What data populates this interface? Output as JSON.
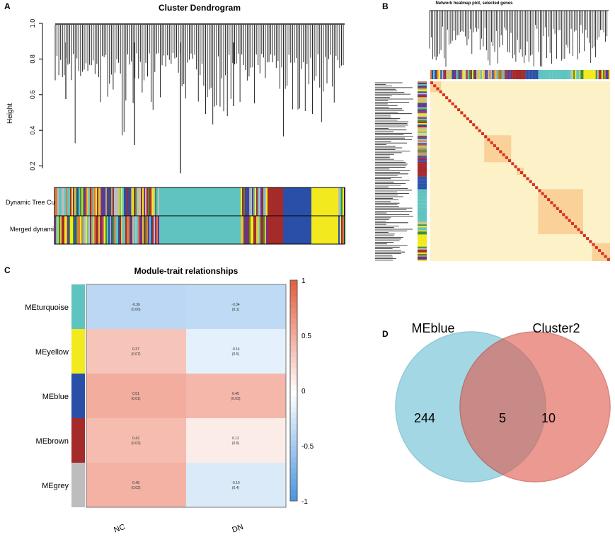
{
  "panels": {
    "a": "A",
    "b": "B",
    "c": "C",
    "d": "D"
  },
  "colors": {
    "turquoise": "#5fc4bf",
    "blue": "#2a4fa8",
    "brown": "#a52a2a",
    "yellow": "#f2ea1e",
    "grey": "#bdbdbd"
  },
  "chart_data": [
    {
      "type": "dendrogram",
      "title": "Cluster Dendrogram",
      "ylabel": "Height",
      "yticks": [
        "0.2",
        "0.4",
        "0.6",
        "0.8",
        "1.0"
      ],
      "ylim": [
        0.15,
        1.0
      ],
      "color_rows": [
        "Dynamic Tree Cut",
        "Merged dynamic"
      ]
    },
    {
      "type": "heatmap",
      "title": "Network heatmap plot, selected genes"
    },
    {
      "type": "heatmap",
      "title": "Module-trait relationships",
      "rows": [
        "MEturquoise",
        "MEyellow",
        "MEblue",
        "MEbrown",
        "MEgrey"
      ],
      "row_colors": [
        "#5fc4bf",
        "#f2ea1e",
        "#2a4fa8",
        "#a52a2a",
        "#bdbdbd"
      ],
      "columns": [
        "NC",
        "DN"
      ],
      "values": [
        [
          -0.36,
          -0.34
        ],
        [
          0.37,
          -0.14
        ],
        [
          0.51,
          0.45
        ],
        [
          0.42,
          0.12
        ],
        [
          0.48,
          -0.19
        ]
      ],
      "labels": [
        [
          "-0.36",
          "-0.34"
        ],
        [
          "0.37",
          "-0.14"
        ],
        [
          "0.51",
          "0.45"
        ],
        [
          "0.42",
          "0.12"
        ],
        [
          "0.48",
          "-0.19"
        ]
      ],
      "pvalues": [
        [
          "(0.06)",
          "(0.1)"
        ],
        [
          "(0.07)",
          "(0.5)"
        ],
        [
          "(0.01)",
          "(0.03)"
        ],
        [
          "(0.03)",
          "(0.6)"
        ],
        [
          "(0.02)",
          "(0.4)"
        ]
      ],
      "legend_ticks": [
        "1",
        "0.5",
        "0",
        "-0.5",
        "-1"
      ],
      "zlim": [
        -1,
        1
      ]
    },
    {
      "type": "venn",
      "sets": [
        "MEblue",
        "Cluster2"
      ],
      "values": {
        "only_a": "244",
        "both": "5",
        "only_b": "10"
      }
    }
  ]
}
